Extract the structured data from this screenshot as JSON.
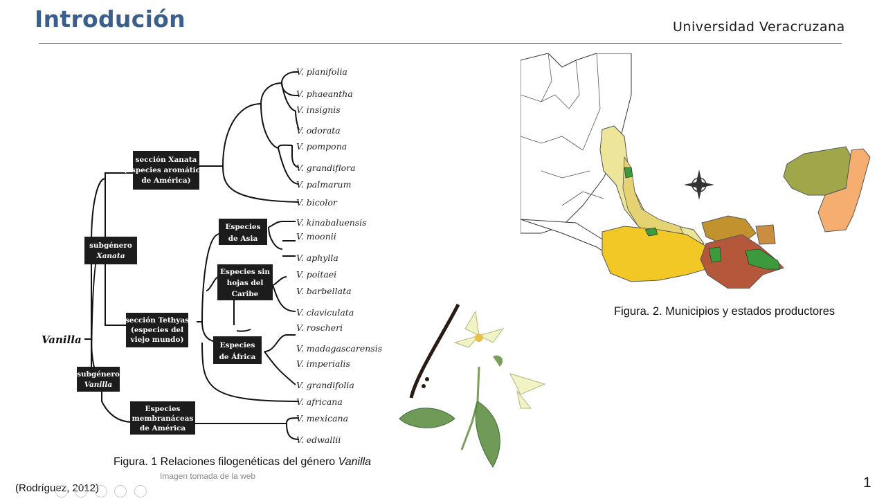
{
  "header": {
    "title": "Introdución",
    "university": "Universidad Veracruzana"
  },
  "tree": {
    "root": "Vanilla",
    "subgenus_xanata": [
      "subgénero",
      "Xanata"
    ],
    "subgenus_vanilla": [
      "subgénero",
      "Vanilla"
    ],
    "section_xanata": [
      "sección Xanata",
      "(especies aromáticas",
      "de América)"
    ],
    "section_tethyas": [
      "sección Tethyas",
      "(especies del",
      "viejo mundo)"
    ],
    "asia": [
      "Especies",
      "de Asia"
    ],
    "caribe": [
      "Especies sin",
      "hojas del",
      "Caribe"
    ],
    "africa": [
      "Especies",
      "de África"
    ],
    "membranaceas": [
      "Especies",
      "membranáceas",
      "de América"
    ],
    "species": [
      "V. planifolia",
      "V. phaeantha",
      "V. insignis",
      "V. odorata",
      "V. pompona",
      "V. grandiflora",
      "V. palmarum",
      "V. bicolor",
      "V. kinabaluensis",
      "V. moonii",
      "V. aphylla",
      "V. poitaei",
      "V. barbellata",
      "V. claviculata",
      "V. roscheri",
      "V. madagascarensis",
      "V. imperialis",
      "V. grandifolia",
      "V. africana",
      "V. mexicana",
      "V. edwallii"
    ]
  },
  "figure1": {
    "caption": "Figura. 1 Relaciones filogenéticas del género ",
    "genus": "Vanilla",
    "note": "Imagen tomada de la web"
  },
  "figure2": {
    "caption": "Figura. 2. Municipios y estados productores"
  },
  "citation": "(Rodríguez, 2012)",
  "page_number": "1"
}
